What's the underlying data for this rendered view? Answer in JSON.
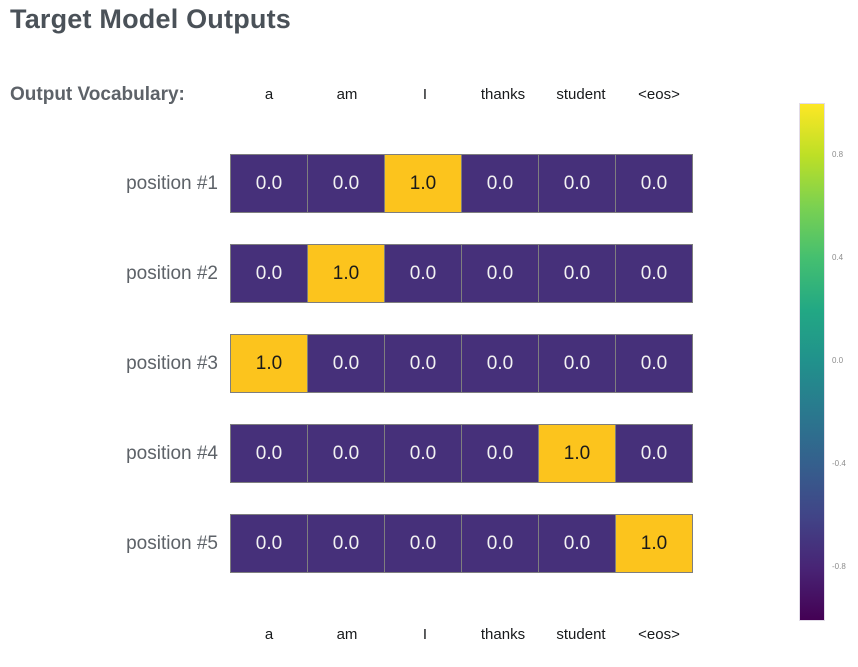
{
  "title": "Target Model Outputs",
  "vocab_label": "Output Vocabulary:",
  "vocabulary": [
    "a",
    "am",
    "I",
    "thanks",
    "student",
    "<eos>"
  ],
  "rows": [
    {
      "label": "position #1",
      "display": [
        "0.0",
        "0.0",
        "1.0",
        "0.0",
        "0.0",
        "0.0"
      ],
      "values": [
        0.0,
        0.0,
        1.0,
        0.0,
        0.0,
        0.0
      ]
    },
    {
      "label": "position #2",
      "display": [
        "0.0",
        "1.0",
        "0.0",
        "0.0",
        "0.0",
        "0.0"
      ],
      "values": [
        0.0,
        1.0,
        0.0,
        0.0,
        0.0,
        0.0
      ]
    },
    {
      "label": "position #3",
      "display": [
        "1.0",
        "0.0",
        "0.0",
        "0.0",
        "0.0",
        "0.0"
      ],
      "values": [
        1.0,
        0.0,
        0.0,
        0.0,
        0.0,
        0.0
      ]
    },
    {
      "label": "position #4",
      "display": [
        "0.0",
        "0.0",
        "0.0",
        "0.0",
        "1.0",
        "0.0"
      ],
      "values": [
        0.0,
        0.0,
        0.0,
        0.0,
        1.0,
        0.0
      ]
    },
    {
      "label": "position #5",
      "display": [
        "0.0",
        "0.0",
        "0.0",
        "0.0",
        "0.0",
        "1.0"
      ],
      "values": [
        0.0,
        0.0,
        0.0,
        0.0,
        0.0,
        1.0
      ]
    }
  ],
  "colorbar": {
    "min": -1.0,
    "max": 1.0,
    "ticks": [
      {
        "label": "0.8",
        "value": 0.8
      },
      {
        "label": "0.4",
        "value": 0.4
      },
      {
        "label": "0.0",
        "value": 0.0
      },
      {
        "label": "-0.4",
        "value": -0.4
      },
      {
        "label": "-0.8",
        "value": -0.8
      }
    ]
  },
  "colors": {
    "cell_low": "#46307a",
    "cell_low_text": "#f2f2f2",
    "cell_high": "#fcc41d",
    "cell_high_text": "#1a1a1a",
    "title_text": "#4a5158",
    "label_text": "#5d6268",
    "cell_border": "#7e7e7e",
    "colormap_top": "#fde725",
    "colormap_bottom": "#440154"
  },
  "chart_data": {
    "type": "heatmap",
    "title": "Target Model Outputs",
    "x_categories": [
      "a",
      "am",
      "I",
      "thanks",
      "student",
      "<eos>"
    ],
    "y_categories": [
      "position #1",
      "position #2",
      "position #3",
      "position #4",
      "position #5"
    ],
    "values": [
      [
        0.0,
        0.0,
        1.0,
        0.0,
        0.0,
        0.0
      ],
      [
        0.0,
        1.0,
        0.0,
        0.0,
        0.0,
        0.0
      ],
      [
        1.0,
        0.0,
        0.0,
        0.0,
        0.0,
        0.0
      ],
      [
        0.0,
        0.0,
        0.0,
        0.0,
        1.0,
        0.0
      ],
      [
        0.0,
        0.0,
        0.0,
        0.0,
        0.0,
        1.0
      ]
    ],
    "cell_text_shown": true,
    "colormap": "viridis",
    "colorbar_range": [
      -1.0,
      1.0
    ],
    "colorbar_ticks": [
      0.8,
      0.4,
      0.0,
      -0.4,
      -0.8
    ],
    "legend_position": "right",
    "grid": false,
    "x_labels_shown": [
      "top",
      "bottom"
    ]
  }
}
